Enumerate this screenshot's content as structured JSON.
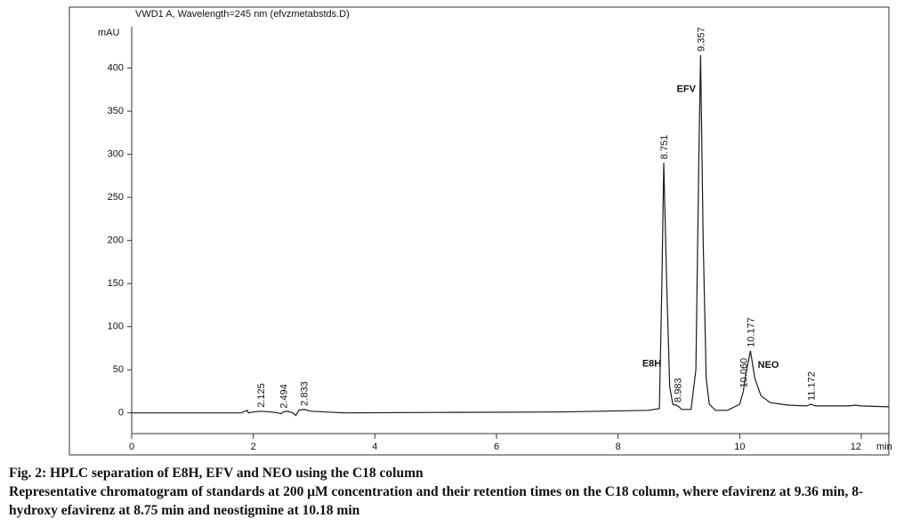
{
  "chart_data": {
    "type": "line",
    "title": "VWD1 A, Wavelength=245 nm (efvzmetabstds.D)",
    "ylabel": "mAU",
    "xlabel": "min",
    "xlim": [
      0,
      12.45
    ],
    "xticks": [
      0,
      2,
      4,
      6,
      8,
      10,
      12
    ],
    "ylim": [
      -24,
      448
    ],
    "yticks": [
      0,
      50,
      100,
      150,
      200,
      250,
      300,
      350,
      400
    ],
    "color": "#1a1a1a",
    "x": [
      0,
      1.8,
      1.9,
      1.92,
      2.0,
      2.125,
      2.3,
      2.4,
      2.45,
      2.494,
      2.55,
      2.65,
      2.7,
      2.75,
      2.833,
      2.95,
      3.2,
      3.5,
      5,
      7,
      8.5,
      8.68,
      8.72,
      8.751,
      8.8,
      8.85,
      8.9,
      8.983,
      9.05,
      9.2,
      9.28,
      9.33,
      9.357,
      9.4,
      9.45,
      9.5,
      9.6,
      9.8,
      10.0,
      10.06,
      10.1,
      10.177,
      10.25,
      10.35,
      10.5,
      10.8,
      11.1,
      11.172,
      11.25,
      11.5,
      11.8,
      11.9,
      12.0,
      12.45
    ],
    "values": [
      0,
      0,
      3,
      0,
      1,
      2,
      1,
      0,
      -1,
      1,
      2,
      0,
      -3,
      3,
      4,
      2,
      1,
      0,
      0.5,
      1,
      3,
      5,
      150,
      290,
      150,
      30,
      10,
      8,
      4,
      4,
      50,
      300,
      415,
      200,
      40,
      10,
      3,
      3,
      10,
      25,
      45,
      72,
      40,
      20,
      12,
      9,
      8,
      10,
      8,
      8,
      8,
      9,
      8,
      7
    ],
    "peaks": [
      {
        "time": 2.125,
        "label": "2.125",
        "height": 2
      },
      {
        "time": 2.494,
        "label": "2.494",
        "height": 1
      },
      {
        "time": 2.833,
        "label": "2.833",
        "height": 4
      },
      {
        "time": 8.751,
        "label": "8.751",
        "height": 290,
        "name": "E8H"
      },
      {
        "time": 8.983,
        "label": "8.983",
        "height": 8
      },
      {
        "time": 9.357,
        "label": "9.357",
        "height": 415,
        "name": "EFV"
      },
      {
        "time": 10.06,
        "label": "10.060",
        "height": 25
      },
      {
        "time": 10.177,
        "label": "10.177",
        "height": 72,
        "name": "NEO"
      },
      {
        "time": 11.172,
        "label": "11.172",
        "height": 10
      }
    ]
  },
  "caption": {
    "title": "Fig. 2: HPLC separation of E8H, EFV and NEO using the C18 column",
    "text": "Representative chromatogram of standards at 200 μM concentration and their retention times on the C18 column, where efavirenz at 9.36 min, 8-hydroxy efavirenz at 8.75 min and neostigmine at 10.18 min"
  }
}
